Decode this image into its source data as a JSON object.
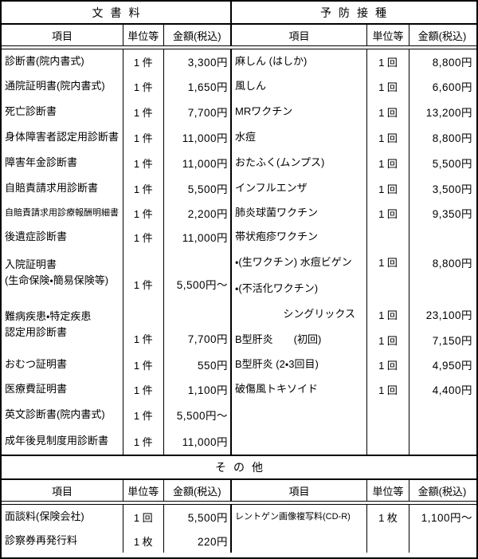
{
  "labels": {
    "item": "項目",
    "unit": "単位等",
    "amount": "金額(税込)"
  },
  "sections": {
    "documents": {
      "title": "文書料",
      "rows": [
        {
          "item": "診断書(院内書式)",
          "unit": "1 件",
          "amount": "3,300円"
        },
        {
          "item": "通院証明書(院内書式)",
          "unit": "1 件",
          "amount": "1,650円"
        },
        {
          "item": "死亡診断書",
          "unit": "1 件",
          "amount": "7,700円"
        },
        {
          "item": "身体障害者認定用診断書",
          "unit": "1 件",
          "amount": "11,000円"
        },
        {
          "item": "障害年金診断書",
          "unit": "1 件",
          "amount": "11,000円"
        },
        {
          "item": "自賠責請求用診断書",
          "unit": "1 件",
          "amount": "5,500円"
        },
        {
          "item": "自賠責請求用診療報酬明細書",
          "unit": "1 件",
          "amount": "2,200円"
        },
        {
          "item": "後遺症診断書",
          "unit": "1 件",
          "amount": "11,000円"
        },
        {
          "item": "入院証明書\n(生命保険・簡易保険等)",
          "unit": "1 件",
          "amount": "5,500円～"
        },
        {
          "item": "難病疾患・特定疾患\n認定用診断書",
          "unit": "1 件",
          "amount": "7,700円"
        },
        {
          "item": "おむつ証明書",
          "unit": "1 件",
          "amount": "550円"
        },
        {
          "item": "医療費証明書",
          "unit": "1 件",
          "amount": "1,100円"
        },
        {
          "item": "英文診断書(院内書式)",
          "unit": "1 件",
          "amount": "5,500円～"
        },
        {
          "item": "成年後見制度用診断書",
          "unit": "1 件",
          "amount": "11,000円"
        }
      ]
    },
    "vaccines": {
      "title": "予防接種",
      "rows": [
        {
          "item": "麻しん (はしか)",
          "unit": "1 回",
          "amount": "8,800円"
        },
        {
          "item": "風しん",
          "unit": "1 回",
          "amount": "6,600円"
        },
        {
          "item": "MRワクチン",
          "unit": "1 回",
          "amount": "13,200円"
        },
        {
          "item": "水痘",
          "unit": "1 回",
          "amount": "8,800円"
        },
        {
          "item": "おたふく(ムンプス)",
          "unit": "1 回",
          "amount": "5,500円"
        },
        {
          "item": "インフルエンザ",
          "unit": "1 回",
          "amount": "3,500円"
        },
        {
          "item": "肺炎球菌ワクチン",
          "unit": "1 回",
          "amount": "9,350円"
        },
        {
          "item": "帯状疱疹ワクチン",
          "unit": "",
          "amount": ""
        },
        {
          "item": "・(生ワクチン) 水痘ビゲン",
          "unit": "1 回",
          "amount": "8,800円"
        },
        {
          "item": "・(不活化ワクチン)",
          "unit": "",
          "amount": ""
        },
        {
          "item": "シングリックス",
          "unit": "1 回",
          "amount": "23,100円"
        },
        {
          "item": "B型肝炎　　(初回)",
          "unit": "1 回",
          "amount": "7,150円"
        },
        {
          "item": "B型肝炎 (2・3回目)",
          "unit": "1 回",
          "amount": "4,950円"
        },
        {
          "item": "破傷風トキソイド",
          "unit": "1 回",
          "amount": "4,400円"
        }
      ]
    },
    "other": {
      "title": "その他",
      "left_rows": [
        {
          "item": "面談料(保険会社)",
          "unit": "1 回",
          "amount": "5,500円"
        },
        {
          "item": "診察券再発行料",
          "unit": "1 枚",
          "amount": "220円"
        }
      ],
      "right_rows": [
        {
          "item": "レントゲン画像複写料(CD-R)",
          "unit": "1 枚",
          "amount": "1,100円～"
        }
      ]
    }
  }
}
